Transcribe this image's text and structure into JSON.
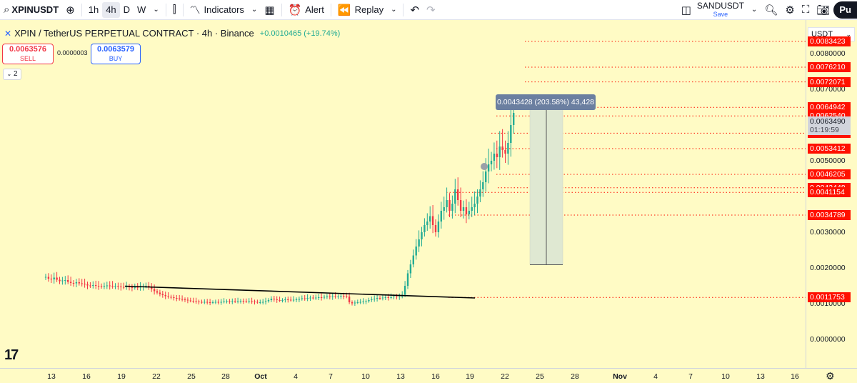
{
  "toolbar": {
    "symbol": "XPINUSDT",
    "intervals": [
      "1h",
      "4h",
      "D",
      "W"
    ],
    "active_interval": "4h",
    "indicators_label": "Indicators",
    "alert_label": "Alert",
    "replay_label": "Replay",
    "layout_name": "SANDUSDT",
    "layout_save": "Save",
    "publish_label": "Pu"
  },
  "legend": {
    "title": "XPIN / TetherUS PERPETUAL CONTRACT · 4h · Binance",
    "change": "+0.0010465 (+19.74%)"
  },
  "quote": {
    "sell_price": "0.0063576",
    "sell_label": "SELL",
    "spread": "0.0000003",
    "buy_price": "0.0063579",
    "buy_label": "BUY"
  },
  "collapse_count": "2",
  "price_axis": {
    "currency": "USDT",
    "tick_labels": [
      "0.0080000",
      "0.0070000",
      "0.0050000",
      "0.0030000",
      "0.0020000",
      "0.0010000",
      "0.0000000"
    ],
    "current_price": "0.0063490",
    "countdown": "01:19:59",
    "level_labels": [
      "0.0083423",
      "0.0076210",
      "0.0072071",
      "0.0064942",
      "0.0062540",
      "0.0057735",
      "0.0053412",
      "0.0046205",
      "0.0042448",
      "0.0041154",
      "0.0034789",
      "0.0011753"
    ]
  },
  "measure_tooltip": "0.0043428 (203.58%) 43,428",
  "time_axis": [
    "13",
    "16",
    "19",
    "22",
    "25",
    "28",
    "Oct",
    "4",
    "7",
    "10",
    "13",
    "16",
    "19",
    "22",
    "25",
    "28",
    "Nov",
    "4",
    "7",
    "10",
    "13",
    "16"
  ],
  "colors": {
    "background": "#fffbc5",
    "up": "#22ab94",
    "down": "#f23645",
    "level_line": "#ff1100",
    "measure_fill": "#dfe8d2"
  },
  "chart_data": {
    "type": "candlestick",
    "ylim": [
      0,
      0.0088
    ],
    "horizontal_levels": [
      0.0083423,
      0.007621,
      0.0072071,
      0.0064942,
      0.006254,
      0.0057735,
      0.0053412,
      0.0046205,
      0.0042448,
      0.0041154,
      0.0034789,
      0.0011753
    ],
    "trendline": [
      [
        0.00149,
        0.00116
      ]
    ],
    "closes": [
      0.00175,
      0.0017,
      0.00168,
      0.00173,
      0.00167,
      0.00163,
      0.00165,
      0.00166,
      0.00161,
      0.00158,
      0.00157,
      0.0016,
      0.00157,
      0.00156,
      0.00154,
      0.00151,
      0.0015,
      0.00152,
      0.0015,
      0.00149,
      0.00148,
      0.0015,
      0.00151,
      0.0015,
      0.00148,
      0.0015,
      0.00148,
      0.00147,
      0.00146,
      0.00148,
      0.00146,
      0.00145,
      0.00146,
      0.00145,
      0.00147,
      0.00149,
      0.0015,
      0.00146,
      0.00141,
      0.00135,
      0.00131,
      0.00127,
      0.00124,
      0.00121,
      0.00119,
      0.00118,
      0.00116,
      0.00115,
      0.00113,
      0.00112,
      0.00111,
      0.00109,
      0.00108,
      0.00107,
      0.00106,
      0.00105,
      0.00104,
      0.00105,
      0.00104,
      0.00103,
      0.00104,
      0.00105,
      0.00104,
      0.00105,
      0.00106,
      0.00107,
      0.00106,
      0.00107,
      0.00106,
      0.00107,
      0.00108,
      0.00107,
      0.00106,
      0.00107,
      0.00106,
      0.00105,
      0.00104,
      0.00104,
      0.00105,
      0.00107,
      0.0011,
      0.00114,
      0.00112,
      0.0011,
      0.00109,
      0.0011,
      0.00112,
      0.00111,
      0.0011,
      0.00111,
      0.00112,
      0.00113,
      0.00115,
      0.00114,
      0.00116,
      0.00117,
      0.00116,
      0.00117,
      0.00118,
      0.00117,
      0.00119,
      0.0012,
      0.00119,
      0.00121,
      0.00119,
      0.0012,
      0.00122,
      0.00121,
      0.0012,
      0.00104,
      0.00101,
      0.00103,
      0.00104,
      0.00105,
      0.00106,
      0.00107,
      0.0011,
      0.00112,
      0.00114,
      0.00116,
      0.00115,
      0.00117,
      0.00118,
      0.00117,
      0.00118,
      0.0012,
      0.00119,
      0.0012,
      0.00125,
      0.0015,
      0.00185,
      0.0021,
      0.00235,
      0.0026,
      0.0028,
      0.003,
      0.0032,
      0.0033,
      0.00345,
      0.0032,
      0.003,
      0.0033,
      0.0036,
      0.0037,
      0.0039,
      0.0036,
      0.0038,
      0.0042,
      0.0039,
      0.0036,
      0.0037,
      0.0035,
      0.0036,
      0.0037,
      0.0038,
      0.004,
      0.0042,
      0.0044,
      0.0047,
      0.0049,
      0.005,
      0.0052,
      0.0051,
      0.0054,
      0.0053,
      0.0052,
      0.0055,
      0.006,
      0.00634
    ]
  }
}
